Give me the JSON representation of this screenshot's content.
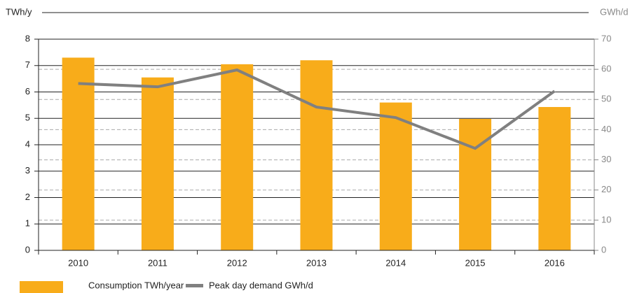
{
  "chart_data": {
    "type": "bar-line",
    "ylabel": "TWh/y",
    "y2label": "GWh/d",
    "categories": [
      "2010",
      "2011",
      "2012",
      "2013",
      "2014",
      "2015",
      "2016"
    ],
    "series": [
      {
        "name": "Consumption TWh/year",
        "type": "bar",
        "color": "#f8ac1a",
        "values": [
          7.3,
          6.55,
          7.05,
          7.2,
          5.6,
          4.98,
          5.43
        ]
      },
      {
        "name": "Peak day demand GWh/d",
        "type": "line",
        "axis": "y2",
        "color": "#808080",
        "values": [
          55.3,
          54.2,
          59.8,
          47.5,
          44.0,
          33.8,
          52.8
        ]
      }
    ],
    "ylim": [
      0,
      8
    ],
    "yticks": [
      0,
      1,
      2,
      3,
      4,
      5,
      6,
      7,
      8
    ],
    "y2lim": [
      0,
      70
    ],
    "y2ticks": [
      0,
      10,
      20,
      30,
      40,
      50,
      60,
      70
    ],
    "grid": true
  }
}
